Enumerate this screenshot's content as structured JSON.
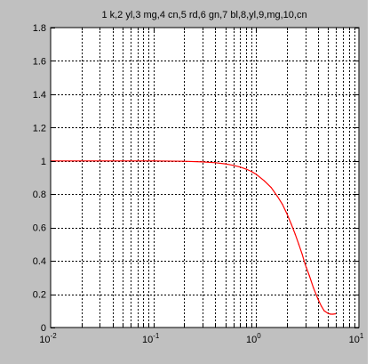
{
  "colors": {
    "figure_background": "#c0c0c0",
    "axes_background": "#ffffff",
    "axes_color": "#000000",
    "grid_color": "#000000",
    "line_color": "#ff0000"
  },
  "chart_data": {
    "type": "line",
    "title": "1 k,2 yl,3 mg,4 cn,5 rd,6 gn,7 bl,8,yl,9,mg,10,cn",
    "xlabel": "",
    "ylabel": "",
    "xscale": "log",
    "xlim": [
      0.01,
      10
    ],
    "ylim": [
      0,
      1.8
    ],
    "grid": true,
    "grid_minor_x": true,
    "grid_style": "dashed",
    "x_ticks": [
      {
        "value": 0.01,
        "base": "10",
        "exp": "-2"
      },
      {
        "value": 0.1,
        "base": "10",
        "exp": "-1"
      },
      {
        "value": 1,
        "base": "10",
        "exp": "0"
      },
      {
        "value": 10,
        "base": "10",
        "exp": "1"
      }
    ],
    "y_ticks": [
      {
        "value": 0,
        "label": "0"
      },
      {
        "value": 0.2,
        "label": "0.2"
      },
      {
        "value": 0.4,
        "label": "0.4"
      },
      {
        "value": 0.6,
        "label": "0.6"
      },
      {
        "value": 0.8,
        "label": "0.8"
      },
      {
        "value": 1.0,
        "label": "1"
      },
      {
        "value": 1.2,
        "label": "1.2"
      },
      {
        "value": 1.4,
        "label": "1.4"
      },
      {
        "value": 1.6,
        "label": "1.6"
      },
      {
        "value": 1.8,
        "label": "1.8"
      }
    ],
    "series": [
      {
        "color": "#ff0000",
        "x": [
          0.01,
          0.02,
          0.05,
          0.1,
          0.2,
          0.3,
          0.4,
          0.5,
          0.6,
          0.7,
          0.8,
          0.9,
          1.0,
          1.2,
          1.4,
          1.6,
          1.8,
          2.0,
          2.2,
          2.4,
          2.6,
          2.8,
          3.0,
          3.3,
          3.6,
          4.0,
          4.3,
          4.6,
          5.0,
          5.3,
          5.6,
          5.9
        ],
        "y": [
          1.0,
          1.0,
          1.0,
          1.0,
          0.998,
          0.994,
          0.989,
          0.982,
          0.973,
          0.963,
          0.951,
          0.937,
          0.92,
          0.88,
          0.84,
          0.79,
          0.74,
          0.68,
          0.62,
          0.56,
          0.5,
          0.44,
          0.38,
          0.31,
          0.24,
          0.17,
          0.13,
          0.1,
          0.085,
          0.08,
          0.08,
          0.082
        ]
      }
    ]
  }
}
